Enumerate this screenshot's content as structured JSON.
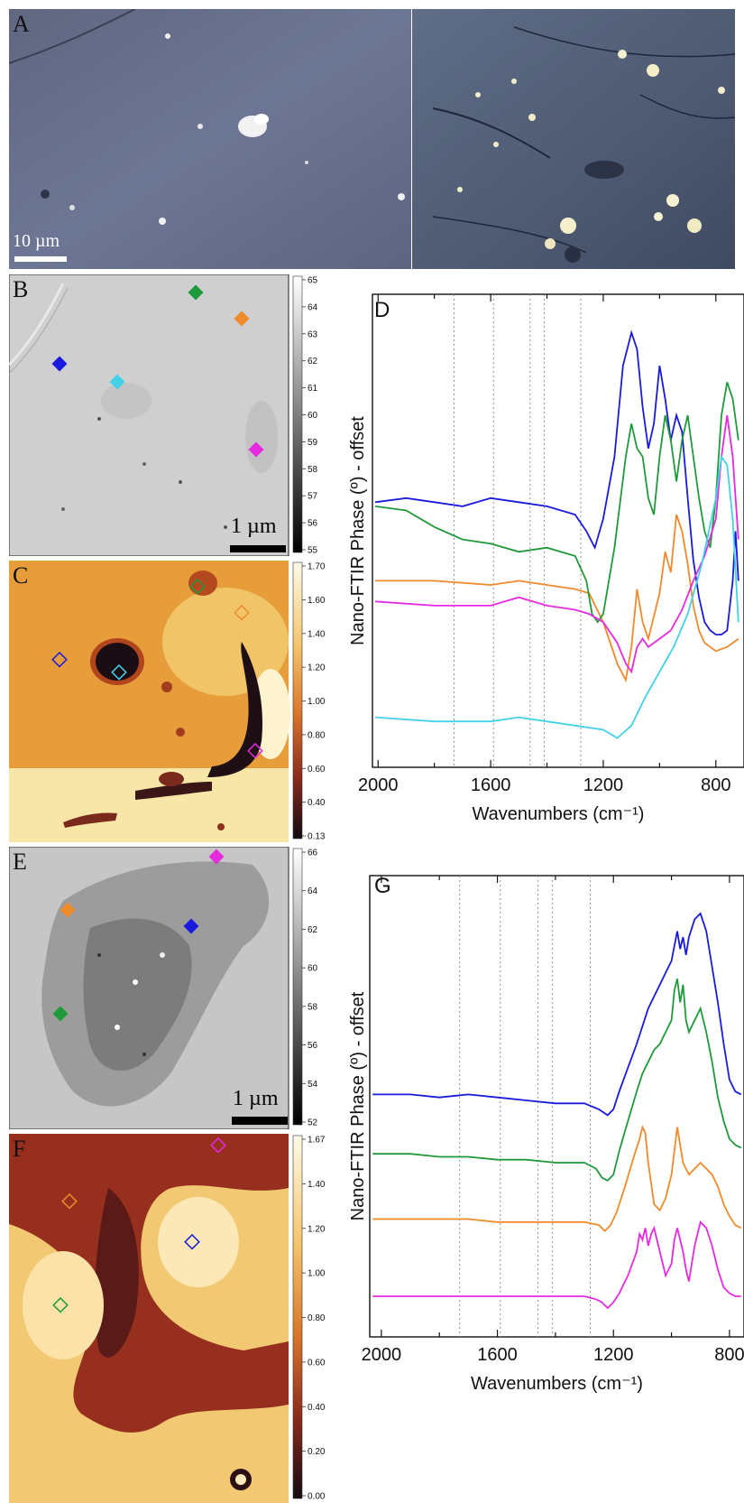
{
  "panels": {
    "A": {
      "label": "A",
      "scale_text": "10 µm"
    },
    "B": {
      "label": "B",
      "scale_text": "1 µm",
      "colorbar_ticks": [
        "65",
        "64",
        "63",
        "62",
        "61",
        "60",
        "59",
        "58",
        "57",
        "56",
        "55"
      ]
    },
    "C": {
      "label": "C",
      "colorbar_ticks": [
        "1.70",
        "1.60",
        "1.40",
        "1.20",
        "1.00",
        "0.80",
        "0.60",
        "0.40",
        "0.13"
      ]
    },
    "D": {
      "label": "D"
    },
    "E": {
      "label": "E",
      "scale_text": "1 µm",
      "colorbar_ticks": [
        "66",
        "64",
        "62",
        "60",
        "58",
        "56",
        "54",
        "52"
      ]
    },
    "F": {
      "label": "F",
      "colorbar_ticks": [
        "1.67",
        "1.40",
        "1.20",
        "1.00",
        "0.80",
        "0.60",
        "0.40",
        "0.20",
        "0.00"
      ]
    },
    "G": {
      "label": "G"
    }
  },
  "marker_colors": {
    "blue": "#1a1adf",
    "orange": "#f08a2a",
    "green": "#1f9a3a",
    "magenta": "#e62ae0",
    "cyan": "#43d1e8"
  },
  "chart_data": [
    {
      "type": "line",
      "panel": "D",
      "xlabel": "Wavenumbers (cm⁻¹)",
      "ylabel": "Nano-FTIR Phase (º) - offset",
      "xlim": [
        2020,
        700
      ],
      "x_ticks": [
        2000,
        1600,
        1200,
        800
      ],
      "reference_lines": [
        1730,
        1590,
        1460,
        1410,
        1280
      ],
      "series": [
        {
          "color": "#1a1adf",
          "x": [
            2010,
            1900,
            1800,
            1700,
            1600,
            1500,
            1400,
            1300,
            1260,
            1230,
            1200,
            1160,
            1130,
            1100,
            1080,
            1060,
            1040,
            1020,
            1000,
            980,
            960,
            940,
            920,
            900,
            880,
            860,
            840,
            820,
            800,
            780,
            760,
            740,
            730,
            720
          ],
          "y": [
            59,
            60,
            59,
            58,
            60,
            59,
            58,
            56,
            52,
            48,
            55,
            70,
            92,
            100,
            96,
            82,
            72,
            78,
            92,
            84,
            74,
            80,
            76,
            60,
            45,
            36,
            30,
            28,
            27,
            27,
            28,
            40,
            52,
            40
          ]
        },
        {
          "color": "#f08a2a",
          "x": [
            2010,
            1800,
            1600,
            1500,
            1400,
            1300,
            1250,
            1200,
            1150,
            1120,
            1100,
            1080,
            1060,
            1040,
            1000,
            980,
            960,
            940,
            920,
            900,
            880,
            860,
            840,
            800,
            760,
            720
          ],
          "y": [
            40,
            40,
            39,
            40,
            39,
            38,
            37,
            30,
            20,
            16,
            24,
            38,
            30,
            26,
            37,
            47,
            42,
            56,
            52,
            44,
            34,
            28,
            25,
            23,
            24,
            26
          ]
        },
        {
          "color": "#1f9a3a",
          "x": [
            2010,
            1900,
            1800,
            1700,
            1600,
            1500,
            1400,
            1300,
            1260,
            1240,
            1220,
            1200,
            1160,
            1120,
            1100,
            1080,
            1060,
            1040,
            1020,
            1000,
            980,
            960,
            940,
            920,
            900,
            880,
            860,
            840,
            820,
            800,
            780,
            760,
            740,
            720
          ],
          "y": [
            58,
            57,
            53,
            50,
            49,
            47,
            48,
            46,
            40,
            32,
            30,
            32,
            48,
            70,
            78,
            72,
            70,
            60,
            56,
            70,
            80,
            74,
            64,
            74,
            80,
            70,
            60,
            52,
            48,
            60,
            80,
            88,
            84,
            74
          ]
        },
        {
          "color": "#e62ae0",
          "x": [
            2010,
            1800,
            1600,
            1500,
            1400,
            1300,
            1250,
            1200,
            1150,
            1120,
            1100,
            1080,
            1060,
            1040,
            1000,
            960,
            920,
            880,
            840,
            800,
            780,
            760,
            740,
            720
          ],
          "y": [
            35,
            34,
            34,
            36,
            34,
            33,
            32,
            30,
            25,
            20,
            18,
            24,
            26,
            24,
            26,
            28,
            33,
            40,
            46,
            55,
            70,
            80,
            70,
            50
          ]
        },
        {
          "color": "#43d1e8",
          "x": [
            2010,
            1800,
            1600,
            1500,
            1400,
            1300,
            1200,
            1150,
            1100,
            1050,
            1000,
            950,
            900,
            850,
            800,
            780,
            760,
            740,
            720
          ],
          "y": [
            7,
            6,
            6,
            7,
            6,
            5,
            4,
            2,
            5,
            12,
            18,
            24,
            32,
            44,
            60,
            70,
            68,
            55,
            30
          ]
        }
      ]
    },
    {
      "type": "line",
      "panel": "G",
      "xlabel": "Wavenumbers (cm⁻¹)",
      "ylabel": "Nano-FTIR Phase (º) - offset",
      "xlim": [
        2040,
        750
      ],
      "x_ticks": [
        2000,
        1600,
        1200,
        800
      ],
      "reference_lines": [
        1730,
        1590,
        1460,
        1410,
        1280
      ],
      "series": [
        {
          "color": "#1a1adf",
          "x": [
            2030,
            1900,
            1800,
            1700,
            1600,
            1500,
            1400,
            1300,
            1250,
            1220,
            1200,
            1180,
            1150,
            1120,
            1100,
            1080,
            1060,
            1040,
            1020,
            1000,
            990,
            980,
            970,
            960,
            950,
            940,
            920,
            900,
            880,
            860,
            840,
            820,
            800,
            780,
            760
          ],
          "y": [
            75,
            75,
            74,
            75,
            74,
            73,
            72,
            72,
            70,
            68,
            70,
            76,
            84,
            92,
            98,
            104,
            108,
            112,
            116,
            120,
            125,
            130,
            124,
            128,
            122,
            128,
            134,
            136,
            130,
            118,
            106,
            92,
            80,
            76,
            75
          ]
        },
        {
          "color": "#1f9a3a",
          "x": [
            2030,
            1900,
            1800,
            1700,
            1600,
            1500,
            1400,
            1300,
            1260,
            1240,
            1220,
            1200,
            1180,
            1150,
            1120,
            1100,
            1080,
            1060,
            1040,
            1020,
            1000,
            990,
            980,
            970,
            960,
            950,
            940,
            920,
            900,
            880,
            860,
            840,
            820,
            800,
            780,
            760
          ],
          "y": [
            55,
            55,
            54,
            54,
            53,
            53,
            52,
            52,
            50,
            47,
            46,
            48,
            56,
            66,
            76,
            82,
            86,
            90,
            92,
            96,
            100,
            110,
            114,
            106,
            112,
            100,
            96,
            100,
            104,
            96,
            86,
            74,
            66,
            60,
            58,
            57
          ]
        },
        {
          "color": "#f08a2a",
          "x": [
            2030,
            1900,
            1800,
            1700,
            1600,
            1500,
            1400,
            1300,
            1250,
            1230,
            1210,
            1190,
            1160,
            1130,
            1110,
            1100,
            1090,
            1080,
            1060,
            1040,
            1020,
            1000,
            990,
            980,
            970,
            960,
            940,
            920,
            900,
            880,
            860,
            840,
            820,
            800,
            780,
            760
          ],
          "y": [
            33,
            33,
            33,
            33,
            32,
            32,
            32,
            32,
            31,
            29,
            31,
            35,
            44,
            54,
            60,
            64,
            62,
            52,
            38,
            36,
            40,
            48,
            56,
            64,
            58,
            52,
            48,
            50,
            52,
            50,
            48,
            44,
            38,
            34,
            31,
            30
          ]
        },
        {
          "color": "#e62ae0",
          "x": [
            2030,
            1900,
            1800,
            1700,
            1600,
            1500,
            1400,
            1300,
            1260,
            1240,
            1220,
            1200,
            1180,
            1150,
            1120,
            1110,
            1100,
            1090,
            1080,
            1070,
            1060,
            1040,
            1020,
            1000,
            990,
            980,
            970,
            960,
            950,
            940,
            920,
            900,
            880,
            860,
            840,
            820,
            800,
            780,
            760
          ],
          "y": [
            7,
            7,
            7,
            7,
            7,
            7,
            7,
            7,
            6,
            5,
            3,
            5,
            8,
            14,
            22,
            28,
            26,
            30,
            24,
            28,
            30,
            22,
            14,
            18,
            26,
            30,
            26,
            22,
            16,
            12,
            24,
            32,
            30,
            24,
            16,
            10,
            8,
            7,
            7
          ]
        }
      ]
    }
  ]
}
